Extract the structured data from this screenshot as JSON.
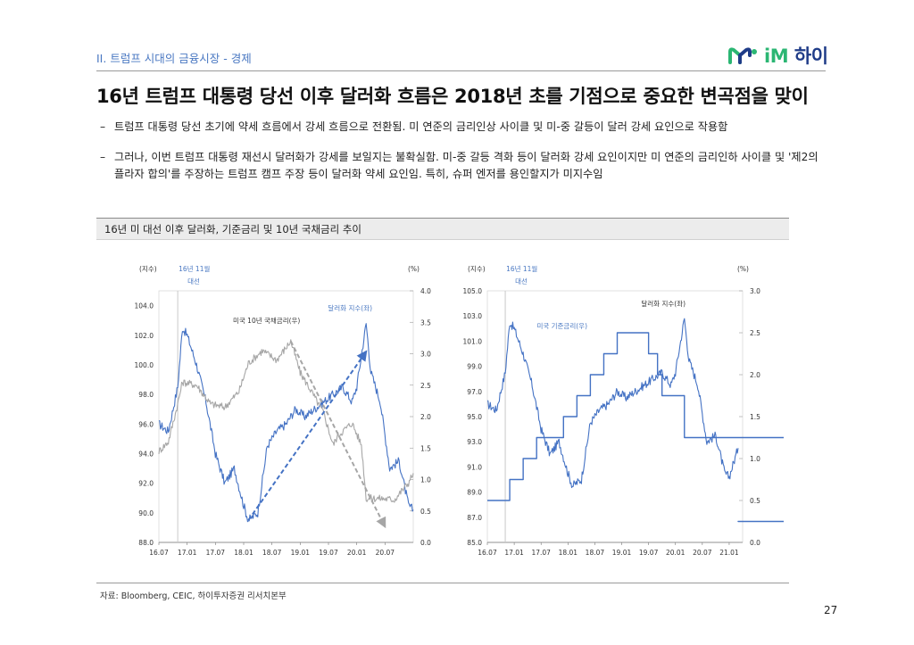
{
  "header": {
    "section": "II. 트럼프 시대의 금융시장 - 경제",
    "logo": {
      "im": "iM",
      "hai": "하이"
    },
    "title": "16년 트럼프 대통령 당선 이후 달러화 흐름은 2018년 초를 기점으로 중요한 변곡점을 맞이"
  },
  "bullets": [
    {
      "dash": "–",
      "text": "트럼프 대통령 당선 초기에 약세 흐름에서 강세 흐름으로 전환됨. 미 연준의 금리인상 사이클 및 미-중 갈등이 달러 강세 요인으로 작용함"
    },
    {
      "dash": "–",
      "text": "그러나, 이번 트럼프 대통령 재선시 달러화가 강세를 보일지는 불확실함. 미-중 갈등 격화 등이 달러화 강세 요인이지만 미 연준의 금리인하 사이클 및 '제2의 플라자 합의'를 주장하는 트럼프 캠프 주장 등이 달러화 약세 요인임. 특히, 슈퍼 엔저를 용인할지가 미지수임"
    }
  ],
  "chart_section_title": "16년 미 대선 이후 달러화, 기준금리 및 10년 국채금리 추이",
  "colors": {
    "dollar": "#4472c4",
    "rates": "#a6a6a6",
    "accent": "#4a78c2"
  },
  "chart_data": [
    {
      "type": "line",
      "left_unit": "(지수)",
      "right_unit": "(%)",
      "event_label_1": "16년 11월",
      "event_label_2": "대선",
      "event_x": "16.11",
      "ylim_left": [
        88,
        105
      ],
      "yticks_left": [
        "104.0",
        "102.0",
        "100.0",
        "98.0",
        "96.0",
        "94.0",
        "92.0",
        "90.0",
        "88.0"
      ],
      "ylim_right": [
        0,
        4
      ],
      "yticks_right": [
        "4.0",
        "3.5",
        "3.0",
        "2.5",
        "2.0",
        "1.5",
        "1.0",
        "0.5",
        "0.0"
      ],
      "xticks": [
        "16.07",
        "17.01",
        "17.07",
        "18.01",
        "18.07",
        "19.01",
        "19.07",
        "20.01",
        "20.07"
      ],
      "series": [
        {
          "name": "달러화 지수(좌)",
          "axis": "left",
          "x": [
            "16.07",
            "16.09",
            "16.11",
            "16.12",
            "17.01",
            "17.03",
            "17.05",
            "17.07",
            "17.09",
            "17.11",
            "18.01",
            "18.02",
            "18.04",
            "18.06",
            "18.08",
            "18.10",
            "18.12",
            "19.02",
            "19.04",
            "19.06",
            "19.08",
            "19.10",
            "19.12",
            "20.01",
            "20.03",
            "20.04",
            "20.06",
            "20.08",
            "20.10",
            "20.12",
            "21.01"
          ],
          "values": [
            96.0,
            95.5,
            98.5,
            102.5,
            102.0,
            100.0,
            97.5,
            94.0,
            92.0,
            93.0,
            90.5,
            89.5,
            90.0,
            94.5,
            95.5,
            96.0,
            97.0,
            96.5,
            97.0,
            97.5,
            98.0,
            98.5,
            97.5,
            98.5,
            102.8,
            99.5,
            97.5,
            93.0,
            93.5,
            90.5,
            90.2
          ]
        },
        {
          "name": "미국 10년 국채금리(우)",
          "axis": "right",
          "x": [
            "16.07",
            "16.09",
            "16.11",
            "16.12",
            "17.03",
            "17.06",
            "17.09",
            "17.12",
            "18.02",
            "18.05",
            "18.08",
            "18.11",
            "19.01",
            "19.03",
            "19.06",
            "19.08",
            "19.09",
            "19.12",
            "20.02",
            "20.03",
            "20.06",
            "20.09",
            "20.12",
            "21.01"
          ],
          "values": [
            1.45,
            1.6,
            2.2,
            2.55,
            2.5,
            2.2,
            2.15,
            2.4,
            2.85,
            3.05,
            2.9,
            3.2,
            2.7,
            2.45,
            2.05,
            1.55,
            1.7,
            1.9,
            1.55,
            0.7,
            0.7,
            0.68,
            0.95,
            1.1
          ]
        }
      ],
      "annotations": {
        "dollar_label": "달러화 지수(좌)",
        "rate_label": "미국 10년 국채금리(우)"
      }
    },
    {
      "type": "line",
      "left_unit": "(지수)",
      "right_unit": "(%)",
      "event_label_1": "16년 11월",
      "event_label_2": "대선",
      "event_x": "16.11",
      "ylim_left": [
        85,
        105
      ],
      "yticks_left": [
        "105.0",
        "103.0",
        "101.0",
        "99.0",
        "97.0",
        "95.0",
        "93.0",
        "91.0",
        "89.0",
        "87.0",
        "85.0"
      ],
      "ylim_right": [
        0,
        3
      ],
      "yticks_right": [
        "3.0",
        "2.5",
        "2.0",
        "1.5",
        "1.0",
        "0.5",
        "0.0"
      ],
      "xticks": [
        "16.07",
        "17.01",
        "17.07",
        "18.01",
        "18.07",
        "19.01",
        "19.07",
        "20.01",
        "20.07",
        "21.01"
      ],
      "series": [
        {
          "name": "달러화 지수(좌)",
          "axis": "left",
          "x": [
            "16.07",
            "16.09",
            "16.11",
            "16.12",
            "17.01",
            "17.03",
            "17.05",
            "17.07",
            "17.09",
            "17.11",
            "18.01",
            "18.02",
            "18.04",
            "18.06",
            "18.08",
            "18.10",
            "18.12",
            "19.02",
            "19.04",
            "19.06",
            "19.08",
            "19.10",
            "19.12",
            "20.01",
            "20.03",
            "20.04",
            "20.06",
            "20.08",
            "20.10",
            "20.12",
            "21.01",
            "21.03"
          ],
          "values": [
            96.0,
            95.5,
            98.5,
            102.5,
            102.0,
            100.0,
            97.5,
            94.0,
            92.0,
            93.0,
            90.5,
            89.5,
            90.0,
            94.5,
            95.5,
            96.0,
            97.0,
            96.5,
            97.0,
            97.5,
            98.0,
            98.5,
            97.5,
            98.5,
            102.8,
            99.5,
            97.5,
            93.0,
            93.5,
            90.5,
            90.2,
            92.5
          ]
        },
        {
          "name": "미국 기준금리(우)",
          "axis": "right",
          "step": true,
          "x": [
            "16.07",
            "16.12",
            "17.03",
            "17.06",
            "17.12",
            "18.03",
            "18.06",
            "18.09",
            "18.12",
            "19.07",
            "19.09",
            "19.10",
            "20.03",
            "20.031",
            "21.03"
          ],
          "values": [
            0.5,
            0.75,
            1.0,
            1.25,
            1.5,
            1.75,
            2.0,
            2.25,
            2.5,
            2.25,
            2.0,
            1.75,
            1.25,
            0.25,
            0.25
          ]
        }
      ],
      "annotations": {
        "dollar_label": "달러화 지수(좌)",
        "rate_label": "미국 기준금리(우)"
      }
    }
  ],
  "footer": {
    "source": "자료: Bloomberg, CEIC, 하이투자증권 리서치본부",
    "page": "27"
  }
}
